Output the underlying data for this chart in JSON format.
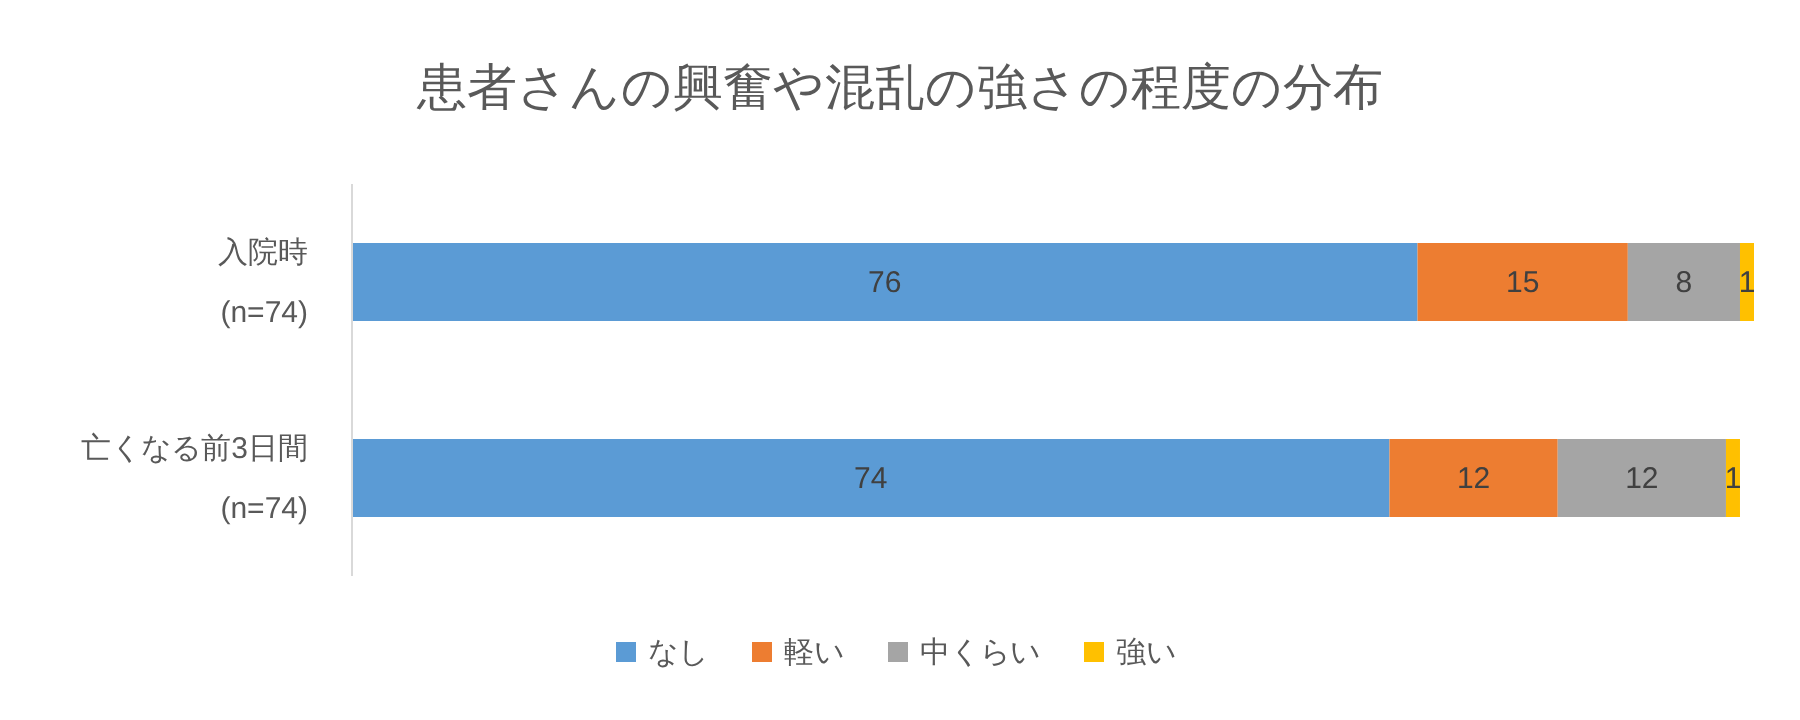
{
  "chart_data": {
    "type": "bar",
    "orientation": "horizontal",
    "stacked": true,
    "title": "患者さんの興奮や混乱の強さの程度の分布",
    "categories": [
      "入院時\n(n=74)",
      "亡くなる前3日間\n(n=74)"
    ],
    "xlim": [
      0,
      100
    ],
    "tick_labels": "y",
    "data_labels": true,
    "legend": "bottom",
    "series": [
      {
        "name": "なし",
        "color": "#5b9bd5",
        "values": [
          76,
          74
        ]
      },
      {
        "name": "軽い",
        "color": "#ed7d31",
        "values": [
          15,
          12
        ]
      },
      {
        "name": "中くらい",
        "color": "#a5a5a5",
        "values": [
          8,
          12
        ]
      },
      {
        "name": "強い",
        "color": "#ffc000",
        "values": [
          1,
          1
        ]
      }
    ]
  }
}
